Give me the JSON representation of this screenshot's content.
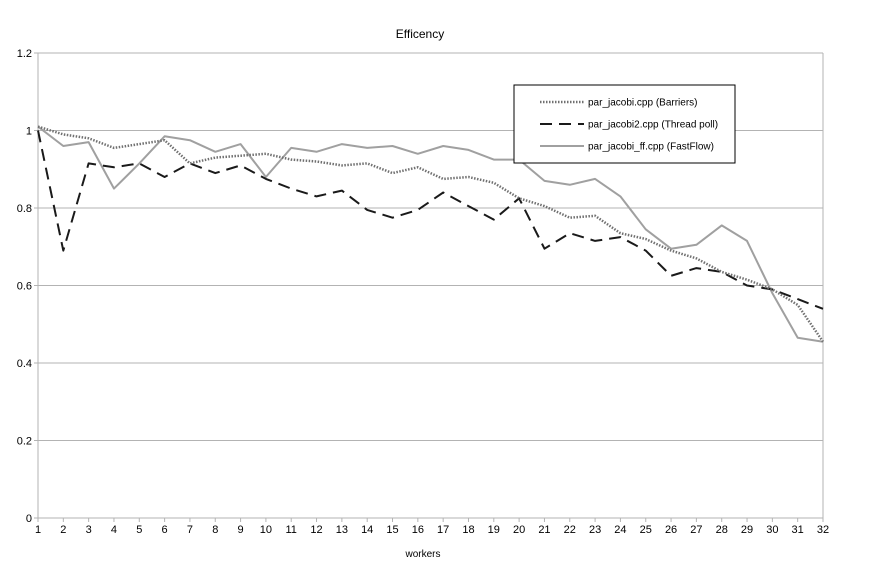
{
  "chart_data": {
    "type": "line",
    "title": "Efficency",
    "xlabel": "workers",
    "ylabel": "",
    "ylim": [
      0,
      1.2
    ],
    "yticks": [
      "0",
      "0.2",
      "0.4",
      "0.6",
      "0.8",
      "1",
      "1.2"
    ],
    "x": [
      1,
      2,
      3,
      4,
      5,
      6,
      7,
      8,
      9,
      10,
      11,
      12,
      13,
      14,
      15,
      16,
      17,
      18,
      19,
      20,
      21,
      22,
      23,
      24,
      25,
      26,
      27,
      28,
      29,
      30,
      31,
      32
    ],
    "grid": true,
    "legend_position": "top-right",
    "series": [
      {
        "name": "par_jacobi.cpp (Barriers)",
        "style": "dotted",
        "color": "#707070",
        "values": [
          1.01,
          0.99,
          0.98,
          0.955,
          0.965,
          0.975,
          0.915,
          0.93,
          0.935,
          0.94,
          0.925,
          0.92,
          0.91,
          0.915,
          0.89,
          0.905,
          0.875,
          0.88,
          0.865,
          0.825,
          0.805,
          0.775,
          0.78,
          0.735,
          0.72,
          0.69,
          0.67,
          0.635,
          0.615,
          0.59,
          0.55,
          0.455
        ]
      },
      {
        "name": "par_jacobi2.cpp (Thread poll)",
        "style": "dashed",
        "color": "#1a1a1a",
        "values": [
          1.0,
          0.69,
          0.915,
          0.905,
          0.915,
          0.88,
          0.915,
          0.89,
          0.91,
          0.875,
          0.85,
          0.83,
          0.845,
          0.795,
          0.775,
          0.795,
          0.84,
          0.805,
          0.77,
          0.825,
          0.695,
          0.735,
          0.715,
          0.725,
          0.69,
          0.625,
          0.645,
          0.635,
          0.6,
          0.59,
          0.565,
          0.54
        ]
      },
      {
        "name": "par_jacobi_ff.cpp (FastFlow)",
        "style": "solid",
        "color": "#a0a0a0",
        "values": [
          1.01,
          0.96,
          0.97,
          0.85,
          0.915,
          0.985,
          0.975,
          0.945,
          0.965,
          0.88,
          0.955,
          0.945,
          0.965,
          0.955,
          0.96,
          0.94,
          0.96,
          0.95,
          0.925,
          0.925,
          0.87,
          0.86,
          0.875,
          0.83,
          0.745,
          0.695,
          0.705,
          0.755,
          0.715,
          0.58,
          0.465,
          0.455
        ]
      }
    ]
  }
}
